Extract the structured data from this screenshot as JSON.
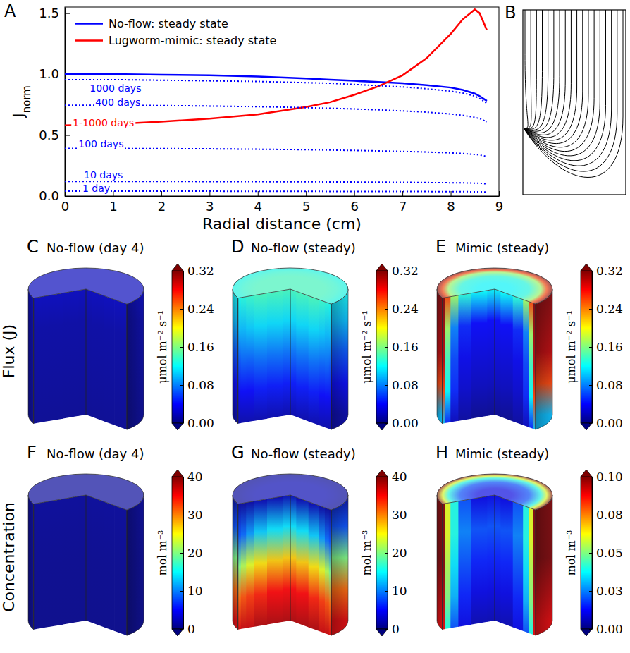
{
  "chart_data": [
    {
      "type": "line",
      "panel": "A",
      "xlabel": "Radial distance (cm)",
      "ylabel": "J",
      "ylabel_subscript": "norm",
      "x": [
        0,
        1,
        2,
        3,
        4,
        5,
        5.5,
        6,
        6.5,
        7,
        7.5,
        8,
        8.25,
        8.5,
        8.6,
        8.75
      ],
      "xlim": [
        0,
        9
      ],
      "xticks": [
        0,
        1,
        2,
        3,
        4,
        5,
        6,
        7,
        8,
        9
      ],
      "ylim": [
        0,
        1.55
      ],
      "yticks": [
        {
          "value": 0,
          "label": "0.0"
        },
        {
          "value": 0.5,
          "label": "0.5"
        },
        {
          "value": 1,
          "label": "1.0"
        },
        {
          "value": 1.5,
          "label": "1.5"
        }
      ],
      "legend": "upper left",
      "series": [
        {
          "name": "No-flow: steady state",
          "color": "#0000ff",
          "line_style": "solid",
          "values": [
            1.0,
            1.0,
            0.995,
            0.99,
            0.98,
            0.965,
            0.955,
            0.945,
            0.935,
            0.925,
            0.91,
            0.89,
            0.87,
            0.84,
            0.82,
            0.78
          ]
        },
        {
          "name": "Lugworm-mimic: steady state",
          "color": "#ff0000",
          "line_style": "solid",
          "values": [
            0.58,
            0.59,
            0.61,
            0.635,
            0.67,
            0.73,
            0.77,
            0.83,
            0.9,
            0.99,
            1.13,
            1.33,
            1.45,
            1.53,
            1.5,
            1.36
          ]
        },
        {
          "color": "#0000ff",
          "line_style": "dotted",
          "values": [
            0.955,
            0.955,
            0.95,
            0.945,
            0.94,
            0.93,
            0.925,
            0.915,
            0.905,
            0.895,
            0.88,
            0.86,
            0.845,
            0.82,
            0.8,
            0.76
          ]
        },
        {
          "color": "#0000ff",
          "line_style": "dotted",
          "values": [
            0.745,
            0.745,
            0.742,
            0.738,
            0.733,
            0.725,
            0.72,
            0.714,
            0.707,
            0.698,
            0.688,
            0.673,
            0.662,
            0.645,
            0.635,
            0.61
          ]
        },
        {
          "color": "#0000ff",
          "line_style": "dotted",
          "values": [
            0.39,
            0.39,
            0.389,
            0.387,
            0.384,
            0.38,
            0.377,
            0.374,
            0.37,
            0.366,
            0.361,
            0.354,
            0.349,
            0.341,
            0.337,
            0.325
          ]
        },
        {
          "color": "#0000ff",
          "line_style": "dotted",
          "values": [
            0.12,
            0.12,
            0.12,
            0.119,
            0.118,
            0.117,
            0.116,
            0.115,
            0.114,
            0.113,
            0.111,
            0.109,
            0.108,
            0.106,
            0.105,
            0.1
          ]
        },
        {
          "color": "#0000ff",
          "line_style": "dotted",
          "values": [
            0.04,
            0.04,
            0.04,
            0.04,
            0.039,
            0.039,
            0.038,
            0.038,
            0.038,
            0.037,
            0.037,
            0.036,
            0.036,
            0.035,
            0.035,
            0.033
          ]
        }
      ],
      "annotations": [
        {
          "text": "1000 days",
          "x": 1.05,
          "y": 0.885,
          "color": "#0000ff"
        },
        {
          "text": "400 days",
          "x": 1.1,
          "y": 0.77,
          "color": "#0000ff"
        },
        {
          "text": "1-1000 days",
          "x": 0.8,
          "y": 0.6,
          "color": "#ff0000"
        },
        {
          "text": "100 days",
          "x": 0.75,
          "y": 0.43,
          "color": "#0000ff"
        },
        {
          "text": "10 days",
          "x": 0.8,
          "y": 0.175,
          "color": "#0000ff"
        },
        {
          "text": "1 day",
          "x": 0.65,
          "y": 0.065,
          "color": "#0000ff"
        }
      ]
    },
    {
      "type": "streamlines",
      "panel": "B"
    },
    {
      "type": "cylinder",
      "panel": "C",
      "title": "No-flow (day 4)",
      "row_label": "Flux (J)",
      "colorbar": {
        "label": "μmol m⁻² s⁻¹",
        "range": [
          0,
          0.32
        ],
        "ticks": [
          {
            "value": 0,
            "label": "0.00"
          },
          {
            "value": 0.08,
            "label": "0.08"
          },
          {
            "value": 0.16,
            "label": "0.16"
          },
          {
            "value": 0.24,
            "label": "0.24"
          },
          {
            "value": 0.32,
            "label": "0.32"
          }
        ]
      },
      "field": {
        "r": [
          0,
          0.3,
          0.6,
          0.8,
          0.9,
          1
        ],
        "z": [
          0,
          0.25,
          0.5,
          0.75,
          1
        ],
        "values": [
          [
            0.02,
            0.02,
            0.02,
            0.02,
            0.02,
            0.02
          ],
          [
            0.012,
            0.012,
            0.012,
            0.012,
            0.012,
            0.012
          ],
          [
            0.01,
            0.01,
            0.01,
            0.01,
            0.01,
            0.01
          ],
          [
            0.008,
            0.008,
            0.008,
            0.008,
            0.008,
            0.008
          ],
          [
            0.006,
            0.006,
            0.006,
            0.006,
            0.006,
            0.006
          ]
        ]
      }
    },
    {
      "type": "cylinder",
      "panel": "D",
      "title": "No-flow (steady)",
      "colorbar": {
        "label": "μmol m⁻² s⁻¹",
        "range": [
          0,
          0.32
        ],
        "ticks": [
          {
            "value": 0,
            "label": "0.00"
          },
          {
            "value": 0.08,
            "label": "0.08"
          },
          {
            "value": 0.16,
            "label": "0.16"
          },
          {
            "value": 0.24,
            "label": "0.24"
          },
          {
            "value": 0.32,
            "label": "0.32"
          }
        ]
      },
      "field": {
        "r": [
          0,
          0.3,
          0.6,
          0.8,
          0.9,
          1
        ],
        "z": [
          0,
          0.25,
          0.5,
          0.75,
          1
        ],
        "values": [
          [
            0.14,
            0.14,
            0.14,
            0.135,
            0.13,
            0.125
          ],
          [
            0.11,
            0.11,
            0.11,
            0.105,
            0.1,
            0.1
          ],
          [
            0.075,
            0.075,
            0.075,
            0.07,
            0.07,
            0.065
          ],
          [
            0.045,
            0.045,
            0.045,
            0.04,
            0.04,
            0.038
          ],
          [
            0.015,
            0.015,
            0.015,
            0.015,
            0.014,
            0.013
          ]
        ]
      }
    },
    {
      "type": "cylinder",
      "panel": "E",
      "title": "Mimic (steady)",
      "colorbar": {
        "label": "μmol m⁻² s⁻¹",
        "range": [
          0,
          0.32
        ],
        "ticks": [
          {
            "value": 0,
            "label": "0.00"
          },
          {
            "value": 0.08,
            "label": "0.08"
          },
          {
            "value": 0.16,
            "label": "0.16"
          },
          {
            "value": 0.24,
            "label": "0.24"
          },
          {
            "value": 0.32,
            "label": "0.32"
          }
        ]
      },
      "field": {
        "r": [
          0,
          0.3,
          0.6,
          0.8,
          0.9,
          1
        ],
        "z": [
          0,
          0.25,
          0.5,
          0.75,
          1
        ],
        "values": [
          [
            0.12,
            0.12,
            0.13,
            0.17,
            0.26,
            0.32
          ],
          [
            0.04,
            0.04,
            0.05,
            0.08,
            0.17,
            0.31
          ],
          [
            0.03,
            0.03,
            0.035,
            0.06,
            0.14,
            0.3
          ],
          [
            0.02,
            0.02,
            0.025,
            0.05,
            0.12,
            0.26
          ],
          [
            0.005,
            0.005,
            0.01,
            0.02,
            0.05,
            0.1
          ]
        ]
      }
    },
    {
      "type": "cylinder",
      "panel": "F",
      "title": "No-flow (day 4)",
      "row_label": "Concentration",
      "colorbar": {
        "label": "mol m⁻³",
        "range": [
          0,
          40
        ],
        "ticks": [
          0,
          10,
          20,
          30,
          40
        ]
      },
      "field": {
        "r": [
          0,
          0.3,
          0.6,
          0.8,
          0.9,
          1
        ],
        "z": [
          0,
          0.25,
          0.5,
          0.75,
          1
        ],
        "values": [
          [
            1,
            1,
            1,
            1,
            1,
            1
          ],
          [
            0.8,
            0.8,
            0.8,
            0.8,
            0.8,
            0.8
          ],
          [
            0.6,
            0.6,
            0.6,
            0.6,
            0.6,
            0.6
          ],
          [
            0.5,
            0.5,
            0.5,
            0.5,
            0.5,
            0.5
          ],
          [
            0.4,
            0.4,
            0.4,
            0.4,
            0.4,
            0.4
          ]
        ]
      }
    },
    {
      "type": "cylinder",
      "panel": "G",
      "title": "No-flow (steady)",
      "colorbar": {
        "label": "mol m⁻³",
        "range": [
          0,
          40
        ],
        "ticks": [
          0,
          10,
          20,
          30,
          40
        ]
      },
      "field": {
        "r": [
          0,
          0.3,
          0.6,
          0.8,
          0.9,
          1
        ],
        "z": [
          0,
          0.25,
          0.5,
          0.75,
          1
        ],
        "values": [
          [
            2,
            2,
            2,
            1.5,
            1,
            1
          ],
          [
            14,
            14,
            13,
            11,
            9,
            8
          ],
          [
            27,
            27,
            26,
            24,
            22,
            20
          ],
          [
            35,
            35,
            34,
            33,
            32,
            31
          ],
          [
            38,
            38,
            38,
            37,
            37,
            36
          ]
        ]
      }
    },
    {
      "type": "cylinder",
      "panel": "H",
      "title": "Mimic (steady)",
      "colorbar": {
        "label": "mol m⁻³",
        "range": [
          0,
          0.1
        ],
        "ticks": [
          {
            "value": 0,
            "label": "0.00"
          },
          {
            "value": 0.025,
            "label": "0.03"
          },
          {
            "value": 0.05,
            "label": "0.05"
          },
          {
            "value": 0.075,
            "label": "0.08"
          },
          {
            "value": 0.1,
            "label": "0.10"
          }
        ]
      },
      "field": {
        "r": [
          0,
          0.3,
          0.6,
          0.8,
          0.9,
          1
        ],
        "z": [
          0,
          0.25,
          0.5,
          0.75,
          1
        ],
        "values": [
          [
            0.01,
            0.01,
            0.02,
            0.04,
            0.06,
            0.1
          ],
          [
            0.02,
            0.02,
            0.025,
            0.04,
            0.06,
            0.1
          ],
          [
            0.015,
            0.015,
            0.02,
            0.035,
            0.055,
            0.1
          ],
          [
            0.01,
            0.01,
            0.015,
            0.03,
            0.05,
            0.095
          ],
          [
            0.005,
            0.005,
            0.01,
            0.02,
            0.04,
            0.09
          ]
        ]
      }
    }
  ]
}
